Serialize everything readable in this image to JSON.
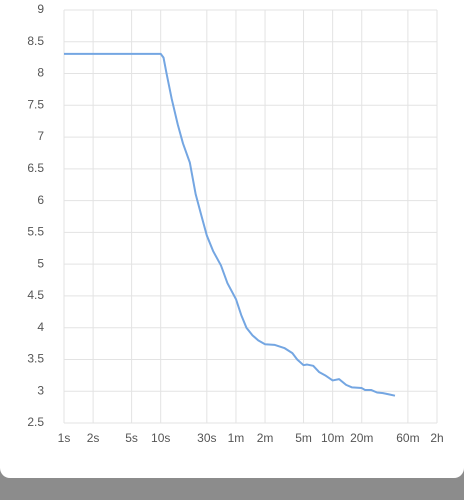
{
  "chart_data": {
    "type": "line",
    "color": "#74a6e2",
    "grid": true,
    "xscale": "log",
    "x": [
      1,
      10,
      10.7,
      11.5,
      13,
      15,
      17,
      20,
      23,
      26.5,
      30,
      35,
      42,
      49,
      60,
      68,
      77,
      89,
      102,
      120,
      150,
      190,
      230,
      258,
      300,
      327,
      378,
      436,
      502,
      600,
      700,
      827,
      953,
      1200,
      1298,
      1497,
      1726,
      1990,
      2295,
      2647
    ],
    "values": [
      8.31,
      8.31,
      8.25,
      8.0,
      7.6,
      7.2,
      6.9,
      6.6,
      6.1,
      5.75,
      5.45,
      5.2,
      4.98,
      4.7,
      4.45,
      4.2,
      4.0,
      3.88,
      3.8,
      3.74,
      3.73,
      3.68,
      3.6,
      3.5,
      3.41,
      3.42,
      3.4,
      3.3,
      3.25,
      3.17,
      3.19,
      3.1,
      3.06,
      3.05,
      3.02,
      3.02,
      2.98,
      2.97,
      2.95,
      2.93
    ],
    "xlim": [
      1,
      7200
    ],
    "ylim": [
      2.5,
      9
    ],
    "xticks": [
      {
        "value": 1,
        "label": "1s"
      },
      {
        "value": 2,
        "label": "2s"
      },
      {
        "value": 5,
        "label": "5s"
      },
      {
        "value": 10,
        "label": "10s"
      },
      {
        "value": 30,
        "label": "30s"
      },
      {
        "value": 60,
        "label": "1m"
      },
      {
        "value": 120,
        "label": "2m"
      },
      {
        "value": 300,
        "label": "5m"
      },
      {
        "value": 600,
        "label": "10m"
      },
      {
        "value": 1200,
        "label": "20m"
      },
      {
        "value": 3600,
        "label": "60m"
      },
      {
        "value": 7200,
        "label": "2h"
      }
    ],
    "yticks": [
      2.5,
      3,
      3.5,
      4,
      4.5,
      5,
      5.5,
      6,
      6.5,
      7,
      7.5,
      8,
      8.5,
      9
    ]
  }
}
